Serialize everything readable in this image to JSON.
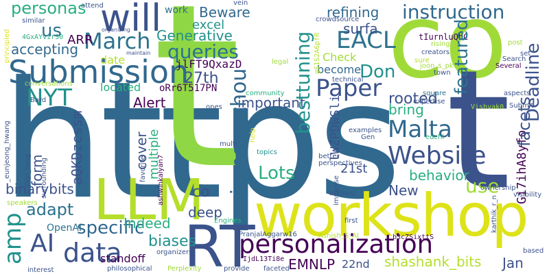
{
  "words": {
    "https": "https",
    "t": "t",
    "co": "co",
    "t_2": "t",
    "workshop": "workshop",
    "LLM": "LLM",
    "RT": "RT",
    "personalization": "personalization",
    "Submission": "Submission",
    "will": "will",
    "Website": "Website",
    "Malta": "Malta",
    "Paper": "Paper",
    "March": "March",
    "EACL": "EACL",
    "data": "data",
    "AI": "AI",
    "amp": "amp",
    "queries": "queries",
    "instruction": "instruction",
    "personas": "personas",
    "xiamengzhou": "xiamengzhou",
    "besttuning": "besttuning",
    "featured": "featured",
    "Deadline": "Deadline",
    "Gi7ihA8yfo": "Gi7ihA8yfo",
    "facets": "facets",
    "NYT": "NYT",
    "Lots": "Lots",
    "specific": "specific",
    "adapt": "adapt",
    "binarybits": "binarybits",
    "shashank_bits": "shashank_bits",
    "Don": "Don",
    "refining": "refining",
    "Generative": "Generative",
    "Beware": "Beware",
    "us": "us",
    "accepting": "accepting",
    "rooted": "rooted",
    "use": "use",
    "behavior": "behavior",
    "bring": "bring",
    "cover": "cover",
    "multiple": "multiple",
    "form": "form",
    "aQKDzcssm": "aQKDzcssm",
    "Indeed": "Indeed",
    "biases": "biases",
    "EMNLP": "EMNLP",
    "22nd": "22nd",
    "21st": "21st",
    "New": "New",
    "Jan": "Jan",
    "deep": "deep",
    "important": "important",
    "Alert": "Alert",
    "co_small": "co",
    "27th": "27th",
    "jlFT9QxazD": "jlFT9QxazD",
    "oRr6T517PN": "oRr6T517PN",
    "lWZPDWSli": "lWZPDWSli",
    "located": "located",
    "date": "date",
    "become": "become",
    "Check": "Check",
    "excel": "excel",
    "ARR": "ARR",
    "surfa": "surfa",
    "OpenAI": "OpenAI",
    "standoff": "standoff",
    "Vishvak0": "Vishvak0",
    "tIurnluQbC": "tIurnluQbC",
    "organizing": "organizing",
    "attend": "attend",
    "vein": "vein",
    "work": "work",
    "similar": "similar",
    "4GxAYvir30": "4GxAYvir30",
    "principled": "principled",
    "crowdsource": "crowdsource",
    "gS1S2A6pfR": "gS1S2A6pfR",
    "rising": "rising",
    "creators": "creators",
    "post": "post",
    "set": "set",
    "Search": "Search",
    "joon_s_pk": "joon_s_pk",
    "sure": "sure",
    "Several": "Several",
    "town": "town",
    "legal": "legal",
    "maintain": "maintain",
    "technical": "technical",
    "conversations": "conversations",
    "community": "community",
    "square": "square",
    "aspects": "aspects",
    "Submit": "Submit",
    "expertise": "expertise",
    "ones": "ones",
    "Bard": "Bard",
    "_eunjeong_hwang": "_eunjeong_hwang",
    "Diyi_Yang": "Diyi_Yang",
    "surrounding": "surrounding",
    "favorite": "favorite",
    "ashwinkalyan7": "ashwinkalyan7",
    "multi": "multi",
    "help": "help",
    "examples": "examples",
    "Gen": "Gen",
    "edchi": "edchi",
    "topics": "topics",
    "better": "better",
    "perspectives": "perspectives",
    "immerse": "immerse",
    "ownership": "ownership",
    "visibility": "visibility",
    "karthik_r_n": "karthik_r_n",
    "brilliant": "brilliant",
    "first": "first",
    "speakers": "speakers",
    "Engines": "Engines",
    "PranjalAggarw16": "PranjalAggarw16",
    "Ashish_S_AI": "Ashish_S_AI",
    "b3cZSixttS": "b3cZSixttS",
    "organizers": "organizers",
    "IjdL13Ti8e": "IjdL13Ti8e",
    "philosophical": "philosophical",
    "Perplexity": "Perplexity",
    "provide": "provide",
    "faceted": "faceted",
    "based": "based",
    "interest": "interest"
  },
  "palette": {
    "dark_purple": "#440154",
    "indigo": "#3b528b",
    "slate_blue": "#31688e",
    "teal_blue": "#2c728e",
    "teal": "#21918c",
    "sea_green": "#28ae80",
    "green": "#5ec962",
    "lime": "#a0da39",
    "yellow": "#dde318"
  }
}
